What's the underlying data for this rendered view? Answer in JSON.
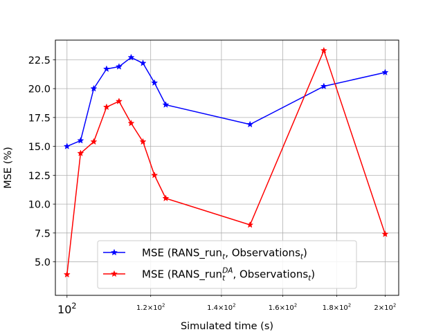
{
  "chart_data": {
    "type": "line",
    "xscale": "log",
    "xlabel": "Simulated time (s)",
    "ylabel": "MSE (%)",
    "xlim": [
      97.5,
      206
    ],
    "ylim": [
      2.1,
      24.2
    ],
    "grid": true,
    "legend_position": "lower-center",
    "x_ticks": [
      {
        "value": 100,
        "label": "10",
        "exp": "2",
        "major": true
      },
      {
        "value": 120,
        "label": "1.2×10",
        "exp": "2",
        "major": false
      },
      {
        "value": 140,
        "label": "1.4×10",
        "exp": "2",
        "major": false
      },
      {
        "value": 160,
        "label": "1.6×10",
        "exp": "2",
        "major": false
      },
      {
        "value": 180,
        "label": "1.8×10",
        "exp": "2",
        "major": false
      },
      {
        "value": 200,
        "label": "2×10",
        "exp": "2",
        "major": false
      }
    ],
    "y_ticks": [
      {
        "value": 5.0,
        "label": "5.0"
      },
      {
        "value": 7.5,
        "label": "7.5"
      },
      {
        "value": 10.0,
        "label": "10.0"
      },
      {
        "value": 12.5,
        "label": "12.5"
      },
      {
        "value": 15.0,
        "label": "15.0"
      },
      {
        "value": 17.5,
        "label": "17.5"
      },
      {
        "value": 20.0,
        "label": "20.0"
      },
      {
        "value": 22.5,
        "label": "22.5"
      }
    ],
    "series": [
      {
        "name": "MSE (RANS_run_t, Observations_t)",
        "legend_main": "MSE (RANS_run",
        "legend_sub": "t",
        "legend_sup": "",
        "legend_tail": ", Observations",
        "legend_tail_sub": "t",
        "legend_end": ")",
        "color": "#0000ff",
        "x": [
          100.0,
          103.0,
          106.0,
          109.0,
          112.0,
          115.0,
          118.0,
          121.0,
          124.0,
          149.0,
          175.0,
          200.0
        ],
        "y": [
          15.0,
          15.5,
          20.0,
          21.7,
          21.9,
          22.7,
          22.2,
          20.5,
          18.6,
          16.9,
          20.2,
          21.4
        ]
      },
      {
        "name": "MSE (RANS_run_t^DA, Observations_t)",
        "legend_main": "MSE (RANS_run",
        "legend_sub": "t",
        "legend_sup": "DA",
        "legend_tail": ", Observations",
        "legend_tail_sub": "t",
        "legend_end": ")",
        "color": "#ff0000",
        "x": [
          100.0,
          103.0,
          106.0,
          109.0,
          112.0,
          115.0,
          118.0,
          121.0,
          124.0,
          149.0,
          175.0,
          200.0
        ],
        "y": [
          3.9,
          14.4,
          15.4,
          18.4,
          18.9,
          17.0,
          15.4,
          12.5,
          10.5,
          8.2,
          23.3,
          7.4
        ]
      }
    ]
  }
}
